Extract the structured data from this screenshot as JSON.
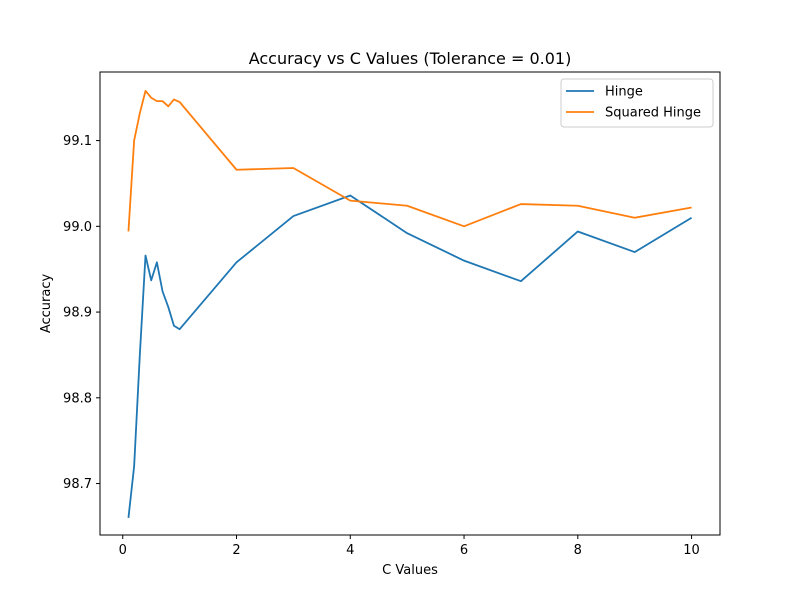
{
  "chart_data": {
    "type": "line",
    "title": "Accuracy vs C Values (Tolerance = 0.01)",
    "xlabel": "C Values",
    "ylabel": "Accuracy",
    "xlim": [
      -0.4,
      10.5
    ],
    "ylim": [
      98.64,
      99.18
    ],
    "xticks": [
      0,
      2,
      4,
      6,
      8,
      10
    ],
    "yticks": [
      98.7,
      98.8,
      98.9,
      99.0,
      99.1
    ],
    "xtick_labels": [
      "0",
      "2",
      "4",
      "6",
      "8",
      "10"
    ],
    "ytick_labels": [
      "98.7",
      "98.8",
      "98.9",
      "99.0",
      "99.1"
    ],
    "grid": false,
    "legend_position": "upper right",
    "series": [
      {
        "name": "Hinge",
        "color": "#1f77b4",
        "x": [
          0.1,
          0.2,
          0.3,
          0.4,
          0.5,
          0.6,
          0.7,
          0.8,
          0.9,
          1,
          2,
          3,
          4,
          5,
          6,
          7,
          8,
          9,
          10
        ],
        "y": [
          98.66,
          98.72,
          98.85,
          98.966,
          98.937,
          98.958,
          98.924,
          98.906,
          98.884,
          98.88,
          98.958,
          99.012,
          99.036,
          98.992,
          98.96,
          98.936,
          98.994,
          98.97,
          99.01
        ]
      },
      {
        "name": "Squared Hinge",
        "color": "#ff7f0e",
        "x": [
          0.1,
          0.2,
          0.3,
          0.4,
          0.5,
          0.6,
          0.7,
          0.8,
          0.9,
          1,
          2,
          3,
          4,
          5,
          6,
          7,
          8,
          9,
          10
        ],
        "y": [
          98.994,
          99.1,
          99.132,
          99.158,
          99.15,
          99.146,
          99.146,
          99.14,
          99.148,
          99.145,
          99.066,
          99.068,
          99.03,
          99.024,
          99.0,
          99.026,
          99.024,
          99.01,
          99.022
        ]
      }
    ]
  }
}
